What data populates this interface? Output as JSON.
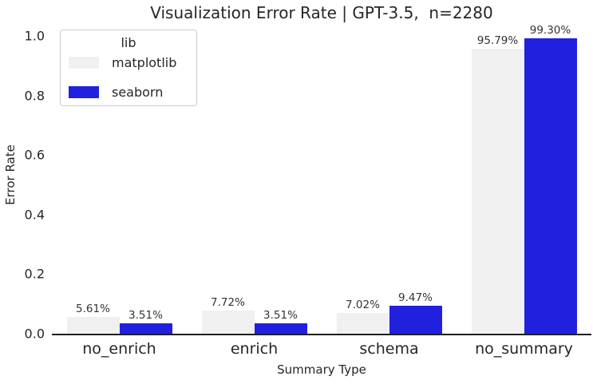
{
  "chart_data": {
    "type": "bar",
    "title": "Visualization Error Rate | GPT-3.5,  n=2280",
    "xlabel": "Summary Type",
    "ylabel": "Error Rate",
    "categories": [
      "no_enrich",
      "enrich",
      "schema",
      "no_summary"
    ],
    "series": [
      {
        "name": "matplotlib",
        "color": "#f0f0f0",
        "values": [
          0.0561,
          0.0772,
          0.0702,
          0.9579
        ],
        "labels": [
          "5.61%",
          "7.72%",
          "7.02%",
          "95.79%"
        ]
      },
      {
        "name": "seaborn",
        "color": "#2120de",
        "values": [
          0.0351,
          0.0351,
          0.0947,
          0.993
        ],
        "labels": [
          "3.51%",
          "3.51%",
          "9.47%",
          "99.30%"
        ]
      }
    ],
    "yticks": [
      "0.0",
      "0.2",
      "0.4",
      "0.6",
      "0.8",
      "1.0"
    ],
    "ylim": [
      0.0,
      1.045
    ],
    "grid": false,
    "legend": {
      "title": "lib",
      "position": "upper left",
      "entries": [
        "matplotlib",
        "seaborn"
      ]
    },
    "axis_color": "#1f1f1f",
    "text_color": "#262626"
  }
}
